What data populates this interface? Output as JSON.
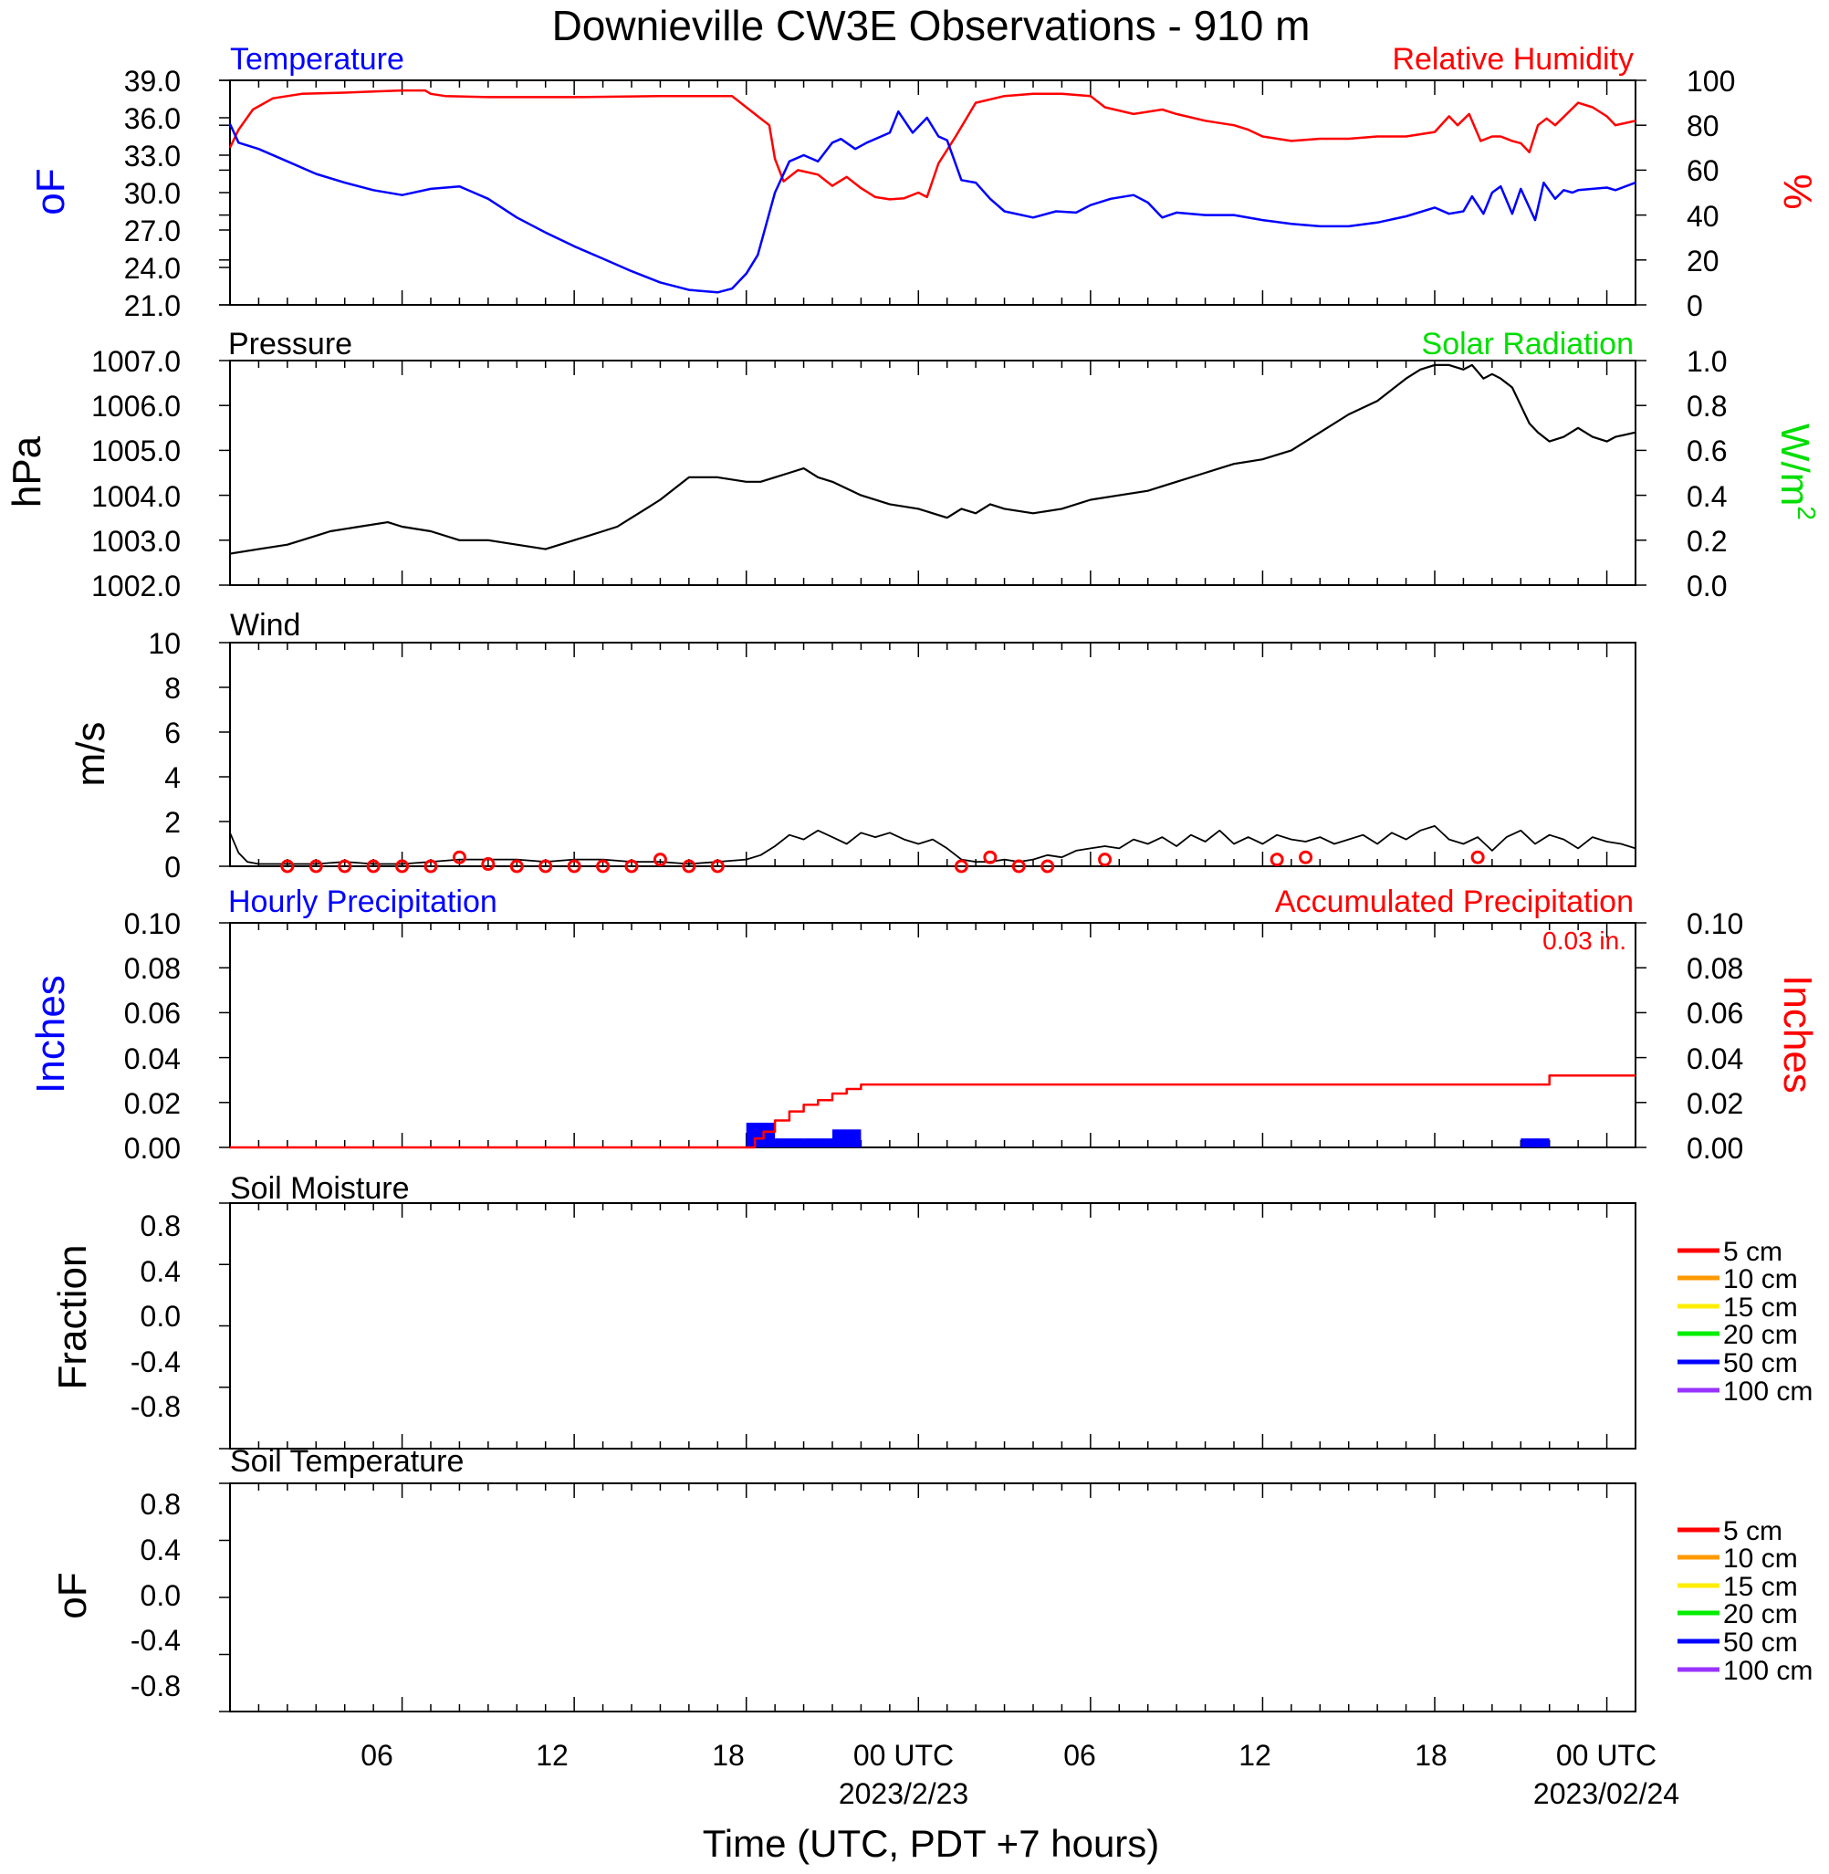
{
  "title": "Downieville CW3E Observations - 910 m",
  "xaxis": {
    "label": "Time (UTC, PDT +7 hours)",
    "range_hours": [
      0,
      48
    ],
    "major_ticks": [
      {
        "hour": 6,
        "label": "06"
      },
      {
        "hour": 12,
        "label": "12"
      },
      {
        "hour": 18,
        "label": "18"
      },
      {
        "hour": 24,
        "label": "00 UTC"
      },
      {
        "hour": 30,
        "label": "06"
      },
      {
        "hour": 36,
        "label": "12"
      },
      {
        "hour": 42,
        "label": "18"
      },
      {
        "hour": 48,
        "label": "00 UTC"
      }
    ],
    "date_labels": [
      {
        "hour": 24,
        "label": "2023/2/23"
      },
      {
        "hour": 48,
        "label": "2023/02/24"
      }
    ]
  },
  "colors": {
    "temperature": "#0000ff",
    "humidity": "#ff0000",
    "pressure": "#000000",
    "solar": "#00dd00",
    "wind": "#000000",
    "wind_marker": "#ff0000",
    "hourly_precip": "#0000ff",
    "accum_precip": "#ff0000",
    "legend": [
      "#ff0000",
      "#ff9900",
      "#ffee00",
      "#00ee00",
      "#0000ff",
      "#9933ff"
    ]
  },
  "panels": {
    "temp": {
      "left_title": "Temperature",
      "right_title": "Relative Humidity",
      "left_units": "oF",
      "right_units": "%",
      "left_ticks": [
        "39.0",
        "36.0",
        "33.0",
        "30.0",
        "27.0",
        "24.0",
        "21.0"
      ],
      "right_ticks": [
        "100",
        "80",
        "60",
        "40",
        "20",
        "0"
      ]
    },
    "pressure": {
      "left_title": "Pressure",
      "right_title": "Solar Radiation",
      "left_units": "hPa",
      "right_units": "W/m",
      "right_units_sup": "2",
      "left_ticks": [
        "1007.0",
        "1006.0",
        "1005.0",
        "1004.0",
        "1003.0",
        "1002.0"
      ],
      "right_ticks": [
        "1.0",
        "0.8",
        "0.6",
        "0.4",
        "0.2",
        "0.0"
      ]
    },
    "wind": {
      "left_title": "Wind",
      "left_units": "m/s",
      "left_ticks": [
        "10",
        "8",
        "6",
        "4",
        "2",
        "0"
      ]
    },
    "precip": {
      "left_title": "Hourly Precipitation",
      "right_title": "Accumulated Precipitation",
      "total_label": "0.03 in.",
      "left_units": "Inches",
      "right_units": "Inches",
      "left_ticks": [
        "0.10",
        "0.08",
        "0.06",
        "0.04",
        "0.02",
        "0.00"
      ],
      "right_ticks": [
        "0.10",
        "0.08",
        "0.06",
        "0.04",
        "0.02",
        "0.00"
      ]
    },
    "soil_moisture": {
      "left_title": "Soil Moisture",
      "left_units": "Fraction",
      "left_ticks": [
        "0.8",
        "0.4",
        "0.0",
        "-0.4",
        "-0.8"
      ],
      "legend": [
        "5 cm",
        "10 cm",
        "15 cm",
        "20 cm",
        "50 cm",
        "100 cm"
      ]
    },
    "soil_temp": {
      "left_title": "Soil Temperature",
      "left_units": "oF",
      "left_ticks": [
        "0.8",
        "0.4",
        "0.0",
        "-0.4",
        "-0.8"
      ],
      "legend": [
        "5 cm",
        "10 cm",
        "15 cm",
        "20 cm",
        "50 cm",
        "100 cm"
      ]
    }
  },
  "chart_data": [
    {
      "type": "line",
      "title": "Temperature / Relative Humidity",
      "series": [
        {
          "name": "Temperature",
          "axis": "left",
          "ylim": [
            21,
            39
          ],
          "x": [
            0,
            0.3,
            1,
            2,
            3,
            4,
            5,
            6,
            7,
            8,
            9,
            10,
            11,
            12,
            13,
            14,
            15,
            16,
            17,
            17.5,
            18,
            18.4,
            18.7,
            19,
            19.5,
            20,
            20.5,
            21,
            21.3,
            21.8,
            22.2,
            22.7,
            23,
            23.3,
            23.8,
            24.3,
            24.7,
            25,
            25.5,
            26,
            26.5,
            27,
            28,
            28.8,
            29.5,
            30,
            30.7,
            31.5,
            32,
            32.5,
            33,
            34,
            35,
            36,
            37,
            38,
            39,
            40,
            41,
            42,
            42.5,
            43,
            43.3,
            43.7,
            44,
            44.3,
            44.7,
            45,
            45.5,
            45.8,
            46.2,
            46.5,
            46.8,
            47,
            47.5,
            48,
            48.3,
            49
          ],
          "y": [
            35.5,
            34,
            33.5,
            32.5,
            31.5,
            30.8,
            30.2,
            29.8,
            30.3,
            30.5,
            29.5,
            28,
            26.8,
            25.7,
            24.7,
            23.7,
            22.8,
            22.2,
            22,
            22.3,
            23.5,
            25,
            27.5,
            30,
            32.5,
            33,
            32.5,
            34,
            34.3,
            33.5,
            34,
            34.5,
            34.8,
            36.5,
            34.8,
            36,
            34.5,
            34.2,
            31,
            30.8,
            29.5,
            28.5,
            28,
            28.5,
            28.4,
            29,
            29.5,
            29.8,
            29.2,
            28,
            28.4,
            28.2,
            28.2,
            27.8,
            27.5,
            27.3,
            27.3,
            27.6,
            28.1,
            28.8,
            28.3,
            28.5,
            29.7,
            28.3,
            30,
            30.5,
            28.3,
            30.3,
            27.8,
            30.8,
            29.5,
            30.2,
            30,
            30.2,
            30.3,
            30.4,
            30.2,
            30.8
          ]
        },
        {
          "name": "Relative Humidity",
          "axis": "right",
          "ylim": [
            0,
            100
          ],
          "x": [
            0,
            0.3,
            0.8,
            1.5,
            2.5,
            4,
            5,
            6,
            6.8,
            7,
            7.5,
            9,
            12,
            15,
            17.5,
            18.3,
            18.8,
            19,
            19.3,
            19.8,
            20.5,
            21,
            21.5,
            22,
            22.5,
            23,
            23.5,
            24,
            24.3,
            24.7,
            25.3,
            26,
            27,
            28,
            29,
            30,
            30.5,
            31.5,
            32.5,
            33,
            34,
            35,
            35.5,
            36,
            37,
            38,
            39,
            40,
            41,
            42,
            42.5,
            42.8,
            43.2,
            43.6,
            44,
            44.3,
            44.7,
            45,
            45.3,
            45.6,
            45.9,
            46.2,
            46.6,
            47,
            47.5,
            48,
            48.3,
            49
          ],
          "y": [
            70,
            78,
            87,
            92,
            94,
            94.5,
            95,
            95.5,
            95.5,
            94,
            93,
            92.5,
            92.5,
            93,
            93,
            85,
            80,
            65,
            55,
            60,
            58,
            53,
            57,
            52,
            48,
            47,
            47.5,
            50,
            48,
            63,
            75,
            90,
            93,
            94,
            94,
            93,
            88,
            85,
            87,
            85,
            82,
            80,
            78,
            75,
            73,
            74,
            74,
            75,
            75,
            77,
            84,
            80,
            85,
            73,
            75,
            75,
            73,
            72,
            68,
            80,
            83,
            80,
            85,
            90,
            88,
            84,
            80,
            82
          ]
        }
      ]
    },
    {
      "type": "line",
      "title": "Pressure",
      "series": [
        {
          "name": "Pressure",
          "axis": "left",
          "ylim": [
            1002,
            1007
          ],
          "x": [
            0,
            1,
            2,
            3,
            3.5,
            4.5,
            5.5,
            6,
            7,
            8,
            9,
            10,
            11,
            12,
            12.5,
            13,
            13.5,
            14,
            14.5,
            15,
            16,
            17,
            18,
            18.5,
            19,
            19.5,
            20,
            20.5,
            21,
            22,
            23,
            24,
            24.5,
            25,
            25.5,
            26,
            26.5,
            27,
            28,
            29,
            30,
            31,
            32,
            33,
            34,
            34.5,
            35,
            36,
            36.5,
            37,
            37.5,
            38,
            39,
            40,
            41,
            41.5,
            42,
            42.5,
            43,
            43.3,
            43.7,
            44,
            44.3,
            44.7,
            45,
            45.3,
            45.6,
            46,
            46.5,
            47,
            47.5,
            48,
            48.3,
            49
          ],
          "y": [
            1002.7,
            1002.8,
            1002.9,
            1003.1,
            1003.2,
            1003.3,
            1003.4,
            1003.3,
            1003.2,
            1003.0,
            1003.0,
            1002.9,
            1002.8,
            1003.0,
            1003.1,
            1003.2,
            1003.3,
            1003.5,
            1003.7,
            1003.9,
            1004.4,
            1004.4,
            1004.3,
            1004.3,
            1004.4,
            1004.5,
            1004.6,
            1004.4,
            1004.3,
            1004.0,
            1003.8,
            1003.7,
            1003.6,
            1003.5,
            1003.7,
            1003.6,
            1003.8,
            1003.7,
            1003.6,
            1003.7,
            1003.9,
            1004.0,
            1004.1,
            1004.3,
            1004.5,
            1004.6,
            1004.7,
            1004.8,
            1004.9,
            1005.0,
            1005.2,
            1005.4,
            1005.8,
            1006.1,
            1006.6,
            1006.8,
            1006.9,
            1006.9,
            1006.8,
            1006.9,
            1006.6,
            1006.7,
            1006.6,
            1006.4,
            1006.0,
            1005.6,
            1005.4,
            1005.2,
            1005.3,
            1005.5,
            1005.3,
            1005.2,
            1005.3,
            1005.4
          ]
        }
      ]
    },
    {
      "type": "line",
      "title": "Wind",
      "series": [
        {
          "name": "Wind",
          "ylim": [
            0,
            10
          ],
          "x": [
            0,
            0.3,
            0.6,
            1,
            2,
            3,
            4,
            5,
            6,
            7,
            8,
            9,
            10,
            11,
            12,
            13,
            14,
            15,
            16,
            17,
            18,
            18.5,
            19,
            19.5,
            20,
            20.5,
            21,
            21.5,
            22,
            22.5,
            23,
            23.5,
            24,
            24.5,
            25,
            25.5,
            26,
            26.5,
            27,
            27.5,
            28,
            28.5,
            29,
            29.5,
            30,
            30.5,
            31,
            31.5,
            32,
            32.5,
            33,
            33.5,
            34,
            34.5,
            35,
            35.5,
            36,
            36.5,
            37,
            37.5,
            38,
            38.5,
            39,
            39.5,
            40,
            40.5,
            41,
            41.5,
            42,
            42.5,
            43,
            43.5,
            44,
            44.5,
            45,
            45.5,
            46,
            46.5,
            47,
            47.5,
            48,
            48.5,
            49
          ],
          "y": [
            1.5,
            0.6,
            0.2,
            0.1,
            0.1,
            0.1,
            0.2,
            0.1,
            0.1,
            0.2,
            0.3,
            0.3,
            0.3,
            0.2,
            0.3,
            0.3,
            0.2,
            0.2,
            0.1,
            0.2,
            0.3,
            0.5,
            0.9,
            1.4,
            1.2,
            1.6,
            1.3,
            1.0,
            1.5,
            1.3,
            1.5,
            1.2,
            1.0,
            1.2,
            0.8,
            0.3,
            0.2,
            0.2,
            0.3,
            0.2,
            0.3,
            0.5,
            0.4,
            0.7,
            0.8,
            0.9,
            0.8,
            1.2,
            1.0,
            1.3,
            0.9,
            1.4,
            1.1,
            1.6,
            1.0,
            1.3,
            1.0,
            1.4,
            1.2,
            1.1,
            1.3,
            1.0,
            1.2,
            1.4,
            1.0,
            1.5,
            1.2,
            1.6,
            1.8,
            1.2,
            1.0,
            1.3,
            0.7,
            1.3,
            1.6,
            1.0,
            1.4,
            1.2,
            0.8,
            1.3,
            1.1,
            1.0,
            0.8
          ]
        }
      ],
      "direction_markers_hours": [
        2,
        3,
        4,
        5,
        6,
        7,
        8,
        9,
        10,
        11,
        12,
        13,
        14,
        15,
        16,
        17,
        25.5,
        26.5,
        27.5,
        28.5,
        30.5,
        36.5,
        37.5,
        43.5
      ],
      "direction_marker_speeds": [
        0,
        0,
        0,
        0,
        0,
        0,
        0.4,
        0.1,
        0,
        0,
        0,
        0,
        0,
        0.3,
        0,
        0,
        0,
        0.4,
        0,
        0,
        0.3,
        0.3,
        0.4,
        0.4
      ]
    },
    {
      "type": "bar",
      "title": "Hourly Precipitation",
      "ylim": [
        0,
        0.1
      ],
      "bars": [
        {
          "start": 18,
          "end": 19,
          "value": 0.011
        },
        {
          "start": 19,
          "end": 20,
          "value": 0.004
        },
        {
          "start": 20,
          "end": 21,
          "value": 0.004
        },
        {
          "start": 21,
          "end": 22,
          "value": 0.008
        },
        {
          "start": 45,
          "end": 46,
          "value": 0.004
        }
      ]
    },
    {
      "type": "line",
      "title": "Accumulated Precipitation",
      "ylim": [
        0,
        0.1
      ],
      "x": [
        0,
        18,
        18.3,
        18.3,
        18.6,
        18.6,
        19,
        19,
        19.5,
        19.5,
        20,
        20,
        20.5,
        20.5,
        21,
        21,
        21.5,
        21.5,
        22,
        22,
        46,
        46,
        48,
        49
      ],
      "y": [
        0,
        0,
        0,
        0.004,
        0.004,
        0.007,
        0.007,
        0.012,
        0.012,
        0.016,
        0.016,
        0.019,
        0.019,
        0.021,
        0.021,
        0.024,
        0.024,
        0.026,
        0.026,
        0.028,
        0.028,
        0.032,
        0.032,
        0.032
      ]
    },
    {
      "type": "line",
      "title": "Soil Moisture",
      "series": []
    },
    {
      "type": "line",
      "title": "Soil Temperature",
      "series": []
    }
  ]
}
